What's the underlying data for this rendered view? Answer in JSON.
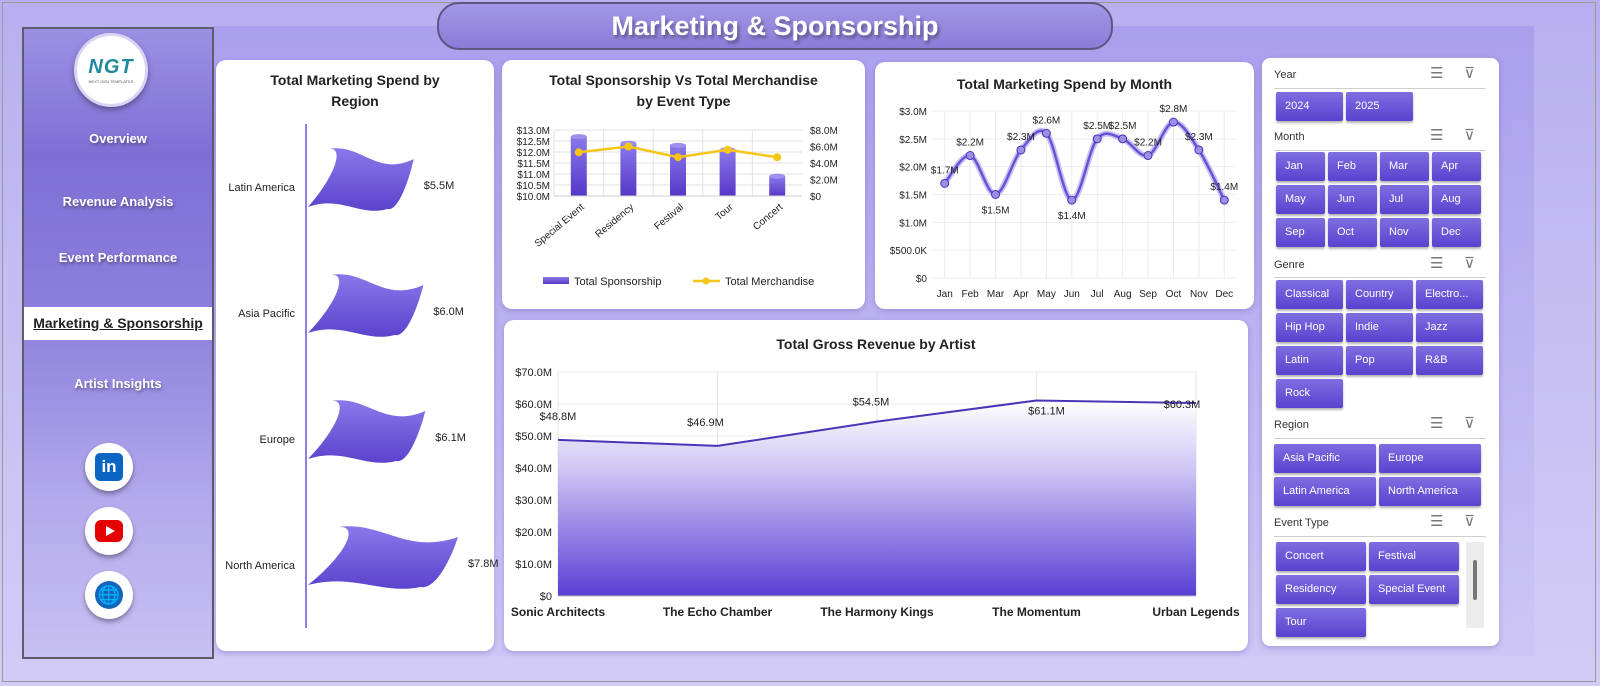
{
  "header": {
    "title": "Marketing & Sponsorship"
  },
  "colors": {
    "accent": "#6a52d8",
    "accent_dark": "#4a34b8",
    "line_gold": "#f5c518"
  },
  "sidebar": {
    "logo_text": "NGT",
    "logo_subtext": "NEXT GEN TEMPLATES",
    "items": [
      {
        "label": "Overview"
      },
      {
        "label": "Revenue Analysis"
      },
      {
        "label": "Event Performance"
      },
      {
        "label": "Marketing & Sponsorship",
        "active": true
      },
      {
        "label": "Artist Insights"
      }
    ],
    "social": [
      {
        "icon": "linkedin-icon",
        "text": "in"
      },
      {
        "icon": "youtube-icon"
      },
      {
        "icon": "globe-icon",
        "text": "🌐"
      }
    ]
  },
  "charts": {
    "region": {
      "title_line1": "Total Marketing Spend by",
      "title_line2": "Region"
    },
    "sponsorship": {
      "title_line1": "Total Sponsorship Vs Total Merchandise",
      "title_line2": "by Event Type"
    },
    "month": {
      "title": "Total Marketing Spend by Month"
    },
    "artist": {
      "title": "Total Gross Revenue by Artist"
    }
  },
  "chart_data": [
    {
      "type": "bar",
      "orientation": "horizontal",
      "categories": [
        "Latin America",
        "Asia Pacific",
        "Europe",
        "North America"
      ],
      "values": [
        5.5,
        6.0,
        6.1,
        7.8
      ],
      "data_labels": [
        "$5.5M",
        "$6.0M",
        "$6.1M",
        "$7.8M"
      ],
      "title": "Total Marketing Spend by Region"
    },
    {
      "type": "bar",
      "combo": "bar+line",
      "title": "Total Sponsorship Vs Total Merchandise by Event Type",
      "categories": [
        "Special Event",
        "Residency",
        "Festival",
        "Tour",
        "Concert"
      ],
      "series": [
        {
          "name": "Total Sponsorship",
          "type": "bar",
          "axis": "left",
          "values": [
            12.7,
            12.4,
            12.3,
            12.1,
            10.9
          ]
        },
        {
          "name": "Total Merchandise",
          "type": "line",
          "axis": "right",
          "values": [
            5.3,
            6.0,
            4.7,
            5.6,
            4.7
          ]
        }
      ],
      "y_left": {
        "ylim": [
          10.0,
          13.0
        ],
        "ticks": [
          "$13.0M",
          "$12.5M",
          "$12.0M",
          "$11.5M",
          "$11.0M",
          "$10.5M",
          "$10.0M"
        ]
      },
      "y_right": {
        "ylim": [
          0,
          8.0
        ],
        "ticks": [
          "$8.0M",
          "$6.0M",
          "$4.0M",
          "$2.0M",
          "$0"
        ]
      },
      "legend": "bottom"
    },
    {
      "type": "line",
      "title": "Total Marketing Spend by Month",
      "categories": [
        "Jan",
        "Feb",
        "Mar",
        "Apr",
        "May",
        "Jun",
        "Jul",
        "Aug",
        "Sep",
        "Oct",
        "Nov",
        "Dec"
      ],
      "values": [
        1.7,
        2.2,
        1.5,
        2.3,
        2.6,
        1.4,
        2.5,
        2.5,
        2.2,
        2.8,
        2.3,
        1.4
      ],
      "data_labels": [
        "$1.7M",
        "$2.2M",
        "$1.5M",
        "$2.3M",
        "$2.6M",
        "$1.4M",
        "$2.5M",
        "$2.5M",
        "$2.2M",
        "$2.8M",
        "$2.3M",
        "$1.4M"
      ],
      "ylim": [
        0,
        3.0
      ],
      "y_ticks": [
        "$3.0M",
        "$2.5M",
        "$2.0M",
        "$1.5M",
        "$1.0M",
        "$500.0K",
        "$0"
      ]
    },
    {
      "type": "area",
      "title": "Total Gross Revenue by Artist",
      "categories": [
        "Sonic Architects",
        "The Echo Chamber",
        "The Harmony Kings",
        "The Momentum",
        "Urban Legends"
      ],
      "values": [
        48.8,
        46.9,
        54.5,
        61.1,
        60.3
      ],
      "data_labels": [
        "$48.8M",
        "$46.9M",
        "$54.5M",
        "$61.1M",
        "$60.3M"
      ],
      "ylim": [
        0,
        70.0
      ],
      "y_ticks": [
        "$70.0M",
        "$60.0M",
        "$50.0M",
        "$40.0M",
        "$30.0M",
        "$20.0M",
        "$10.0M",
        "$0"
      ]
    }
  ],
  "filters": {
    "year": {
      "label": "Year",
      "options": [
        "2024",
        "2025"
      ]
    },
    "month": {
      "label": "Month",
      "options": [
        "Jan",
        "Feb",
        "Mar",
        "Apr",
        "May",
        "Jun",
        "Jul",
        "Aug",
        "Sep",
        "Oct",
        "Nov",
        "Dec"
      ]
    },
    "genre": {
      "label": "Genre",
      "options": [
        "Classical",
        "Country",
        "Electro...",
        "Hip Hop",
        "Indie",
        "Jazz",
        "Latin",
        "Pop",
        "R&B",
        "Rock"
      ]
    },
    "region": {
      "label": "Region",
      "options": [
        "Asia Pacific",
        "Europe",
        "Latin America",
        "North America"
      ]
    },
    "event_type": {
      "label": "Event Type",
      "options": [
        "Concert",
        "Festival",
        "Residency",
        "Special Event",
        "Tour"
      ]
    }
  }
}
